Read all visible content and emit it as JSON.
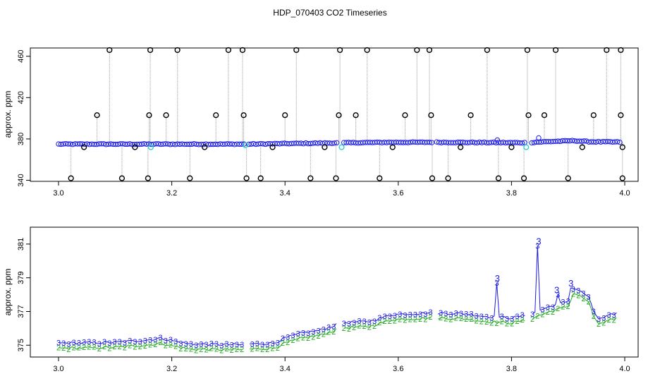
{
  "title": "HDP_070403  CO2 Timeseries",
  "colors": {
    "raw": "#000000",
    "filtered": "#1a1ae6",
    "flagged": "#33cccc",
    "series2": "#22aa22",
    "series3": "#1a1ae6",
    "drop": "#999999"
  },
  "chart_data": [
    {
      "type": "scatter",
      "ylabel": "approx. ppm",
      "xlim": [
        3.0,
        4.0
      ],
      "ylim": [
        339,
        468
      ],
      "x_ticks": [
        3.0,
        3.2,
        3.4,
        3.6,
        3.8,
        4.0
      ],
      "x_tick_labels": [
        "3.0",
        "3.2",
        "3.4",
        "3.6",
        "3.8",
        "4.0"
      ],
      "y_ticks": [
        340,
        380,
        420,
        460
      ],
      "y_tick_labels": [
        "340",
        "380",
        "420",
        "460"
      ],
      "gaps": [
        3.332,
        3.498,
        3.664,
        3.83
      ],
      "baseline": [
        [
          3.0,
          375
        ],
        [
          3.33,
          375.0
        ],
        [
          3.335,
          375.0
        ],
        [
          3.4,
          375.5
        ],
        [
          3.5,
          376.2
        ],
        [
          3.58,
          376.7
        ],
        [
          3.66,
          376.8
        ],
        [
          3.77,
          376.5
        ],
        [
          3.83,
          376.3
        ],
        [
          3.845,
          377.0
        ],
        [
          3.91,
          378.3
        ],
        [
          3.94,
          377.3
        ],
        [
          3.99,
          377.0
        ]
      ],
      "outliers_high": [
        {
          "x": 3.09,
          "y": 466
        },
        {
          "x": 3.162,
          "y": 466
        },
        {
          "x": 3.21,
          "y": 466
        },
        {
          "x": 3.3,
          "y": 466
        },
        {
          "x": 3.325,
          "y": 466
        },
        {
          "x": 3.42,
          "y": 466
        },
        {
          "x": 3.497,
          "y": 466
        },
        {
          "x": 3.545,
          "y": 466
        },
        {
          "x": 3.633,
          "y": 466
        },
        {
          "x": 3.655,
          "y": 466
        },
        {
          "x": 3.757,
          "y": 466
        },
        {
          "x": 3.828,
          "y": 466
        },
        {
          "x": 3.878,
          "y": 466
        },
        {
          "x": 3.968,
          "y": 466
        },
        {
          "x": 3.993,
          "y": 466
        }
      ],
      "outliers_mid": [
        {
          "x": 3.068,
          "y": 403
        },
        {
          "x": 3.16,
          "y": 403
        },
        {
          "x": 3.19,
          "y": 403
        },
        {
          "x": 3.278,
          "y": 403
        },
        {
          "x": 3.327,
          "y": 403
        },
        {
          "x": 3.4,
          "y": 403
        },
        {
          "x": 3.495,
          "y": 403
        },
        {
          "x": 3.525,
          "y": 403
        },
        {
          "x": 3.612,
          "y": 403
        },
        {
          "x": 3.658,
          "y": 403
        },
        {
          "x": 3.728,
          "y": 403
        },
        {
          "x": 3.83,
          "y": 403
        },
        {
          "x": 3.858,
          "y": 403
        },
        {
          "x": 3.945,
          "y": 403
        },
        {
          "x": 3.993,
          "y": 403
        }
      ],
      "outliers_low": [
        {
          "x": 3.022,
          "y": 342
        },
        {
          "x": 3.112,
          "y": 342
        },
        {
          "x": 3.158,
          "y": 342
        },
        {
          "x": 3.232,
          "y": 342
        },
        {
          "x": 3.332,
          "y": 342
        },
        {
          "x": 3.357,
          "y": 342
        },
        {
          "x": 3.445,
          "y": 342
        },
        {
          "x": 3.49,
          "y": 342
        },
        {
          "x": 3.567,
          "y": 342
        },
        {
          "x": 3.66,
          "y": 342
        },
        {
          "x": 3.688,
          "y": 342
        },
        {
          "x": 3.777,
          "y": 342
        },
        {
          "x": 3.822,
          "y": 342
        },
        {
          "x": 3.9,
          "y": 342
        },
        {
          "x": 3.996,
          "y": 342
        }
      ],
      "outliers_slight": [
        {
          "x": 3.045,
          "y": 372
        },
        {
          "x": 3.135,
          "y": 372
        },
        {
          "x": 3.258,
          "y": 372
        },
        {
          "x": 3.378,
          "y": 372
        },
        {
          "x": 3.47,
          "y": 372
        },
        {
          "x": 3.59,
          "y": 372
        },
        {
          "x": 3.71,
          "y": 372
        },
        {
          "x": 3.8,
          "y": 372
        },
        {
          "x": 3.925,
          "y": 372
        },
        {
          "x": 3.996,
          "y": 372
        }
      ],
      "flagged": [
        {
          "x": 3.163,
          "y": 372
        },
        {
          "x": 3.33,
          "y": 374
        },
        {
          "x": 3.5,
          "y": 372
        },
        {
          "x": 3.826,
          "y": 372
        }
      ],
      "bumps": [
        {
          "x": 3.775,
          "y": 379
        },
        {
          "x": 3.848,
          "y": 381
        }
      ]
    },
    {
      "type": "line",
      "ylabel": "approx. ppm",
      "xlim": [
        3.0,
        4.0
      ],
      "ylim": [
        374.3,
        382.0
      ],
      "x_ticks": [
        3.0,
        3.2,
        3.4,
        3.6,
        3.8,
        4.0
      ],
      "x_tick_labels": [
        "3.0",
        "3.2",
        "3.4",
        "3.6",
        "3.8",
        "4.0"
      ],
      "y_ticks": [
        375,
        377,
        379,
        381
      ],
      "y_tick_labels": [
        "375",
        "377",
        "379",
        "381"
      ],
      "gaps": [
        3.332,
        3.498,
        3.664,
        3.83
      ],
      "baseline": [
        [
          3.0,
          375.0
        ],
        [
          3.1,
          375.05
        ],
        [
          3.16,
          375.2
        ],
        [
          3.18,
          375.3
        ],
        [
          3.23,
          374.95
        ],
        [
          3.33,
          374.9
        ],
        [
          3.335,
          374.95
        ],
        [
          3.38,
          375.0
        ],
        [
          3.4,
          375.3
        ],
        [
          3.43,
          375.6
        ],
        [
          3.46,
          375.75
        ],
        [
          3.5,
          376.2
        ],
        [
          3.55,
          376.3
        ],
        [
          3.59,
          376.7
        ],
        [
          3.66,
          376.8
        ],
        [
          3.72,
          376.75
        ],
        [
          3.75,
          376.6
        ],
        [
          3.8,
          376.5
        ],
        [
          3.83,
          376.7
        ],
        [
          3.845,
          376.9
        ],
        [
          3.87,
          377.2
        ],
        [
          3.9,
          377.5
        ],
        [
          3.91,
          378.3
        ],
        [
          3.935,
          377.8
        ],
        [
          3.945,
          376.9
        ],
        [
          3.955,
          376.4
        ],
        [
          3.99,
          376.85
        ]
      ],
      "offset_series2": -0.18,
      "offset_series3": 0.12,
      "series": [
        {
          "name": "2",
          "label": "2"
        },
        {
          "name": "3",
          "label": "3"
        }
      ],
      "spikes": [
        {
          "x": 3.775,
          "y": 378.7
        },
        {
          "x": 3.848,
          "y": 380.9
        },
        {
          "x": 3.88,
          "y": 378.0
        },
        {
          "x": 3.905,
          "y": 378.4
        }
      ]
    }
  ]
}
